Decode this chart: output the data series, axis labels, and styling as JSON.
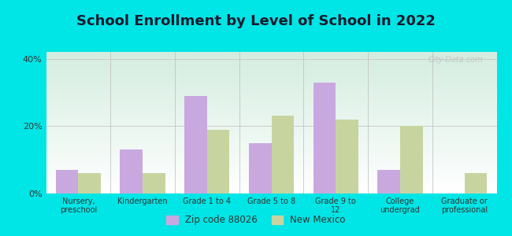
{
  "title": "School Enrollment by Level of School in 2022",
  "categories": [
    "Nursery,\npreschool",
    "Kindergarten",
    "Grade 1 to 4",
    "Grade 5 to 8",
    "Grade 9 to\n12",
    "College\nundergrad",
    "Graduate or\nprofessional"
  ],
  "zip_values": [
    7,
    13,
    29,
    15,
    33,
    7,
    0
  ],
  "nm_values": [
    6,
    6,
    19,
    23,
    22,
    20,
    6
  ],
  "zip_color": "#c9a8e0",
  "nm_color": "#c8d4a0",
  "ylim": [
    0,
    42
  ],
  "yticks": [
    0,
    20,
    40
  ],
  "ytick_labels": [
    "0%",
    "20%",
    "40%"
  ],
  "background_color": "#00e5e5",
  "plot_bg_color_topleft": "#d4ede0",
  "plot_bg_color_bottomright": "#ffffff",
  "title_fontsize": 13,
  "legend_label_zip": "Zip code 88026",
  "legend_label_nm": "New Mexico",
  "bar_width": 0.35,
  "watermark": "City-Data.com"
}
